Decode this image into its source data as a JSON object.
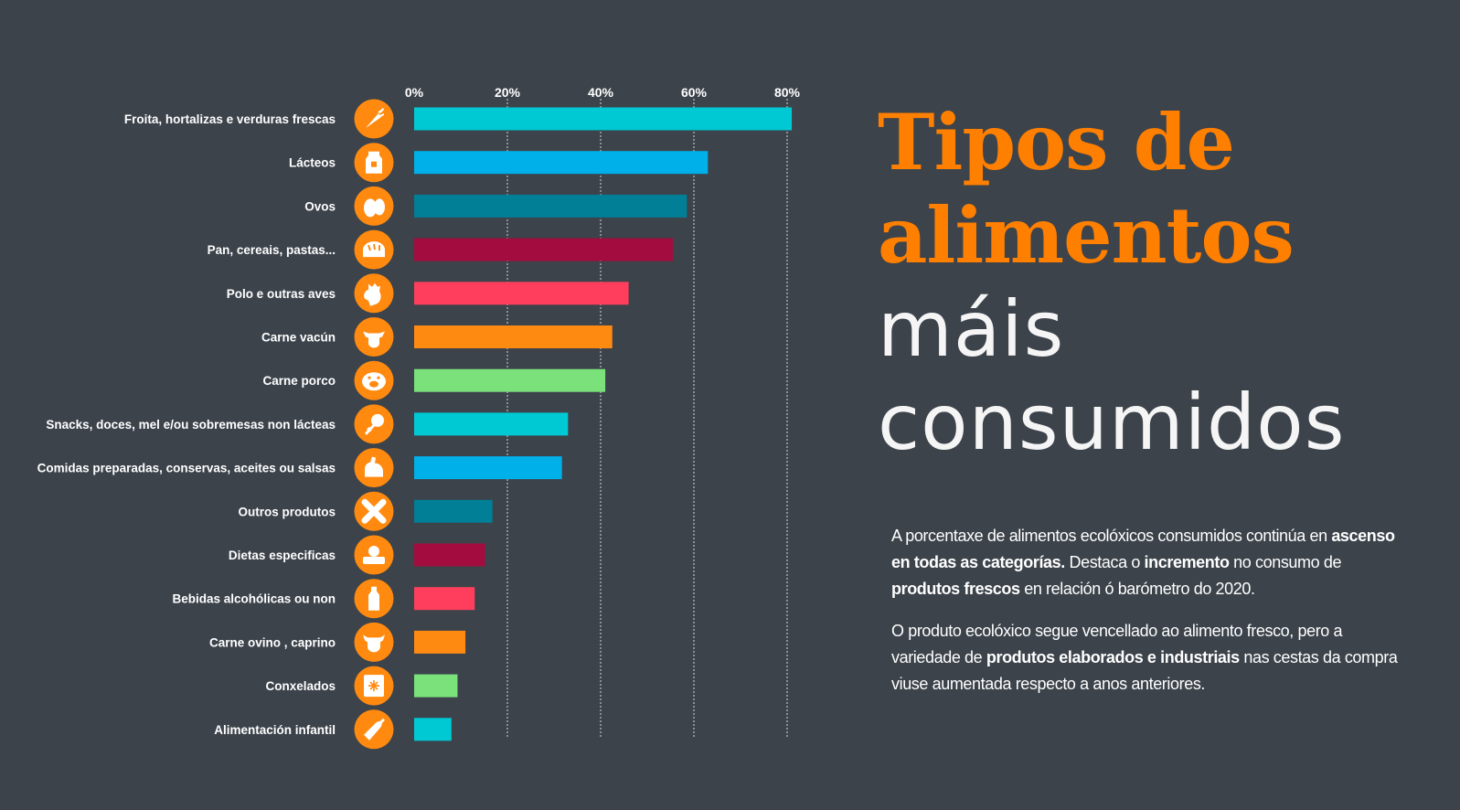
{
  "title": {
    "line1": "Tipos de",
    "line2": "alimentos",
    "line3": "máis",
    "line4": "consumidos"
  },
  "description": {
    "p1": [
      {
        "t": "A porcentaxe de alimentos ecolóxicos consumidos continúa en ",
        "b": false
      },
      {
        "t": "ascenso en todas as categorías.",
        "b": true
      },
      {
        "t": " Destaca o ",
        "b": false
      },
      {
        "t": "incremento",
        "b": true
      },
      {
        "t": " no consumo de ",
        "b": false
      },
      {
        "t": "produtos frescos",
        "b": true
      },
      {
        "t": " en relación ó barómetro do 2020.",
        "b": false
      }
    ],
    "p2": [
      {
        "t": "O produto ecolóxico segue vencellado ao alimento fresco, pero a variedade de ",
        "b": false
      },
      {
        "t": "produtos elaborados e industriais",
        "b": true
      },
      {
        "t": " nas cestas da compra viuse aumentada respecto a anos anteriores.",
        "b": false
      }
    ]
  },
  "chart_data": {
    "type": "bar",
    "orientation": "horizontal",
    "x_ticks": [
      "0%",
      "20%",
      "40%",
      "60%",
      "80%"
    ],
    "xlim": [
      0,
      80
    ],
    "grid": true,
    "categories": [
      "Froita, hortalizas e verduras frescas",
      "Lácteos",
      "Ovos",
      "Pan, cereais, pastas...",
      "Polo e outras aves",
      "Carne vacún",
      "Carne porco",
      "Snacks, doces, mel e/ou sobremesas  non lácteas",
      "Comidas preparadas, conservas, aceites ou salsas",
      "Outros produtos",
      "Dietas especificas",
      "Bebidas alcohólicas ou non",
      "Carne ovino , caprino",
      "Conxelados",
      "Alimentación infantil"
    ],
    "values": [
      81,
      63,
      58.5,
      55.5,
      46,
      42.5,
      41,
      33,
      31.7,
      16.8,
      15.2,
      13,
      11,
      9.3,
      8
    ],
    "colors": [
      "#00c9d4",
      "#00b0e8",
      "#007f96",
      "#a30c3e",
      "#ff3d5c",
      "#ff8a12",
      "#7be27b",
      "#00c9d4",
      "#00b0e8",
      "#007f96",
      "#a30c3e",
      "#ff3d5c",
      "#ff8a12",
      "#7be27b",
      "#00c9d4"
    ],
    "icons": [
      "carrot-icon",
      "milk-carton-icon",
      "eggs-icon",
      "bread-icon",
      "chicken-icon",
      "cow-icon",
      "pig-icon",
      "candy-icon",
      "canned-food-icon",
      "cross-icon",
      "diet-scale-icon",
      "bottle-icon",
      "sheep-icon",
      "frozen-icon",
      "baby-bottle-icon"
    ]
  }
}
